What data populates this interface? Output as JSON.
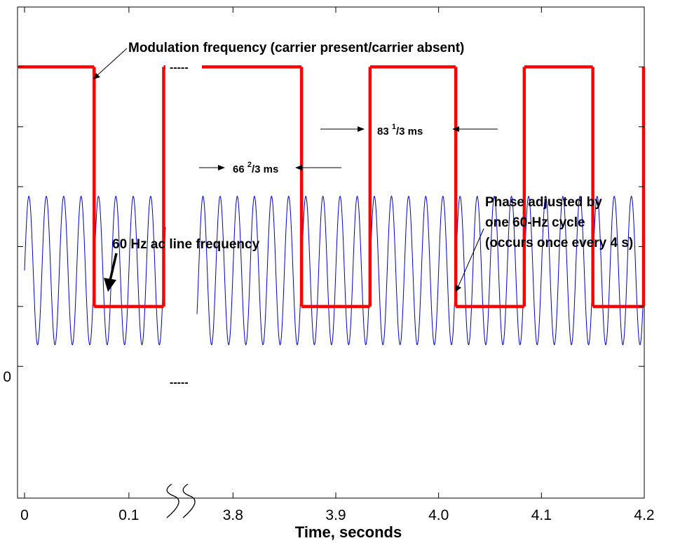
{
  "chart_data": {
    "type": "line",
    "title": "",
    "xlabel": "Time, seconds",
    "ylabel": "",
    "broken_x_axis": true,
    "x_segments": [
      {
        "xlim": [
          0,
          0.135
        ],
        "ticks": [
          0,
          0.1
        ]
      },
      {
        "xlim": [
          3.765,
          4.2
        ],
        "ticks": [
          3.8,
          3.9,
          4.0,
          4.1,
          4.2
        ]
      }
    ],
    "ylim": [
      -1.6,
      2.5
    ],
    "y_ticks": [
      -0.5,
      0,
      0.5,
      1.0,
      1.5,
      2.0
    ],
    "y_tick_labels": {
      "0": "0"
    },
    "grid": false,
    "series": [
      {
        "color": "#ff0000",
        "type": "square_wave",
        "high": 2.0,
        "low": 0,
        "transitions": [
          {
            "x": 0.0667,
            "to": 0
          },
          {
            "x": 0.1333,
            "to": 2.0
          },
          {
            "x": 3.8667,
            "to": 0
          },
          {
            "x": 3.9333,
            "to": 2.0
          },
          {
            "x": 4.0167,
            "to": 0
          },
          {
            "x": 4.0833,
            "to": 2.0
          },
          {
            "x": 4.15,
            "to": 0
          },
          {
            "x": 4.2167,
            "to": 2.0
          }
        ]
      },
      {
        "color": "#0000cc",
        "type": "sine",
        "frequency_hz": 60,
        "amplitude": 0.62,
        "offset": 0.3
      }
    ],
    "annotations": {
      "modulation": "Modulation frequency (carrier present/carrier absent)",
      "line_freq": "60 Hz ac line frequency",
      "phase_line1": "Phase adjusted by",
      "phase_line2": "one 60-Hz cycle",
      "phase_line3": "(occurs once every 4 s)",
      "interval_66_main": "66 ",
      "interval_66_sup": "2",
      "interval_66_rest": "/3 ms",
      "interval_83_main": "83 ",
      "interval_83_sup": "1",
      "interval_83_rest": "/3 ms",
      "gap_marker": "-----"
    }
  }
}
